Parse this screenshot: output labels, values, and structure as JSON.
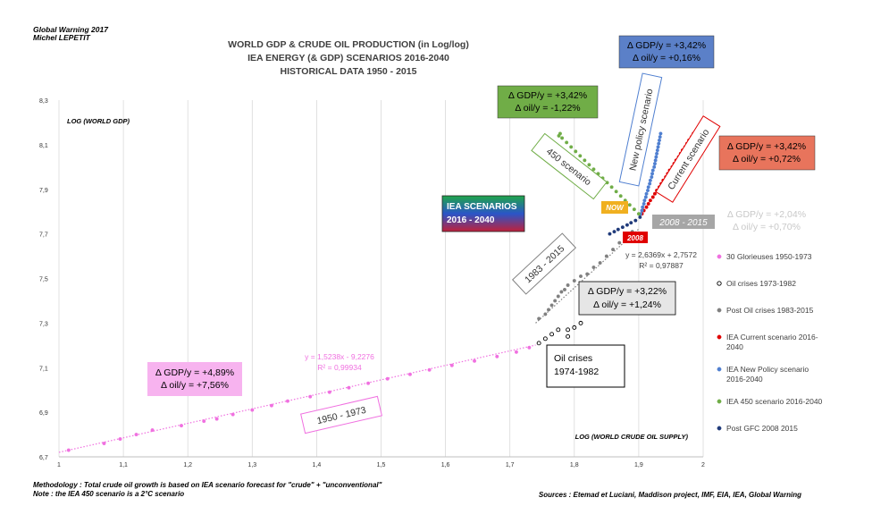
{
  "author": {
    "line1": "Global Warning 2017",
    "line2": "Michel LEPETIT"
  },
  "chart_data": {
    "type": "scatter",
    "title": [
      "WORLD GDP & CRUDE OIL PRODUCTION (in Log/log)",
      "IEA ENERGY (& GDP) SCENARIOS 2016-2040",
      "HISTORICAL DATA  1950 - 2015"
    ],
    "xlabel": "LOG (WORLD CRUDE OIL SUPPLY)",
    "ylabel": "LOG (WORLD GDP)",
    "xlim": [
      1,
      2
    ],
    "ylim": [
      6.7,
      8.3
    ],
    "x_ticks": [
      1,
      1.1,
      1.2,
      1.3,
      1.4,
      1.5,
      1.6,
      1.7,
      1.8,
      1.9,
      2
    ],
    "x_tick_labels": [
      "1",
      "1,1",
      "1,2",
      "1,3",
      "1,4",
      "1,5",
      "1,6",
      "1,7",
      "1,8",
      "1,9",
      "2"
    ],
    "y_ticks": [
      6.7,
      6.9,
      7.1,
      7.3,
      7.5,
      7.7,
      7.9,
      8.1,
      8.3
    ],
    "y_tick_labels": [
      "6,7",
      "6,9",
      "7,1",
      "7,3",
      "7,5",
      "7,7",
      "7,9",
      "8,1",
      "8,3"
    ],
    "grid": "vertical",
    "legend_position": "right",
    "series": [
      {
        "name": "30 Glorieuses 1950-1973",
        "color": "#f070e0",
        "marker": "filled",
        "x": [
          1.015,
          1.07,
          1.095,
          1.12,
          1.145,
          1.19,
          1.225,
          1.245,
          1.27,
          1.3,
          1.33,
          1.355,
          1.39,
          1.42,
          1.45,
          1.48,
          1.51,
          1.545,
          1.575,
          1.61,
          1.645,
          1.68,
          1.71,
          1.73
        ],
        "y": [
          6.73,
          6.76,
          6.78,
          6.8,
          6.82,
          6.84,
          6.86,
          6.87,
          6.89,
          6.91,
          6.93,
          6.95,
          6.97,
          6.99,
          7.01,
          7.03,
          7.05,
          7.07,
          7.09,
          7.11,
          7.13,
          7.15,
          7.17,
          7.19
        ]
      },
      {
        "name": "Oil crises 1973-1982",
        "color": "#000000",
        "marker": "hollow",
        "x": [
          1.745,
          1.755,
          1.765,
          1.775,
          1.79,
          1.8,
          1.81,
          1.79
        ],
        "y": [
          7.21,
          7.23,
          7.25,
          7.27,
          7.27,
          7.28,
          7.3,
          7.24
        ]
      },
      {
        "name": "Post Oil crises 1983-2015",
        "color": "#808080",
        "marker": "filled",
        "x": [
          1.745,
          1.755,
          1.76,
          1.765,
          1.77,
          1.775,
          1.78,
          1.785,
          1.79,
          1.8,
          1.81,
          1.82,
          1.83,
          1.84,
          1.85,
          1.86,
          1.87,
          1.88,
          1.89
        ],
        "y": [
          7.32,
          7.34,
          7.36,
          7.38,
          7.4,
          7.42,
          7.44,
          7.45,
          7.47,
          7.49,
          7.51,
          7.52,
          7.55,
          7.57,
          7.6,
          7.63,
          7.66,
          7.68,
          7.71
        ]
      },
      {
        "name": "IEA Current scenario 2016-2040",
        "color": "#e00000",
        "marker": "filled",
        "x": [
          1.905,
          1.908,
          1.912,
          1.915,
          1.918,
          1.922,
          1.925,
          1.928,
          1.932,
          1.935,
          1.938,
          1.942,
          1.945,
          1.948,
          1.952,
          1.955,
          1.958,
          1.962,
          1.965,
          1.968,
          1.972,
          1.975,
          1.978,
          1.982,
          1.985
        ],
        "y": [
          7.79,
          7.805,
          7.82,
          7.835,
          7.85,
          7.865,
          7.88,
          7.895,
          7.91,
          7.925,
          7.94,
          7.955,
          7.97,
          7.985,
          8,
          8.015,
          8.03,
          8.045,
          8.06,
          8.075,
          8.09,
          8.105,
          8.12,
          8.135,
          8.15
        ]
      },
      {
        "name": "IEA New Policy scenario 2016-2040",
        "color": "#4f7fd0",
        "marker": "filled",
        "x": [
          1.903,
          1.905,
          1.906,
          1.908,
          1.909,
          1.911,
          1.912,
          1.914,
          1.915,
          1.917,
          1.918,
          1.92,
          1.921,
          1.922,
          1.924,
          1.925,
          1.926,
          1.927,
          1.928,
          1.929,
          1.93,
          1.931,
          1.932,
          1.933,
          1.934
        ],
        "y": [
          7.79,
          7.805,
          7.82,
          7.835,
          7.85,
          7.865,
          7.88,
          7.895,
          7.91,
          7.925,
          7.94,
          7.955,
          7.97,
          7.985,
          8,
          8.015,
          8.03,
          8.045,
          8.06,
          8.075,
          8.09,
          8.105,
          8.12,
          8.135,
          8.15
        ]
      },
      {
        "name": "IEA 450 scenario 2016-2040",
        "color": "#70ad47",
        "marker": "filled",
        "x": [
          1.9,
          1.893,
          1.886,
          1.879,
          1.872,
          1.865,
          1.858,
          1.851,
          1.844,
          1.837,
          1.83,
          1.823,
          1.816,
          1.809,
          1.802,
          1.795,
          1.788,
          1.781,
          1.776,
          1.778
        ],
        "y": [
          7.79,
          7.81,
          7.83,
          7.85,
          7.87,
          7.89,
          7.91,
          7.93,
          7.95,
          7.97,
          7.99,
          8.01,
          8.03,
          8.05,
          8.07,
          8.09,
          8.11,
          8.13,
          8.14,
          8.15
        ]
      },
      {
        "name": "Post GFC 2008 2015",
        "color": "#1f3a7a",
        "marker": "filled",
        "x": [
          1.855,
          1.862,
          1.868,
          1.875,
          1.882,
          1.888,
          1.895,
          1.902
        ],
        "y": [
          7.7,
          7.71,
          7.72,
          7.73,
          7.74,
          7.75,
          7.76,
          7.775
        ]
      }
    ],
    "trendlines": [
      {
        "color": "#f070e0",
        "x": [
          1,
          1.74
        ],
        "label": "y = 1,5238x - 9,2276",
        "r2": "R² = 0,99934"
      },
      {
        "color": "#808080",
        "x": [
          1.74,
          1.9
        ],
        "label": "y = 2,6369x + 2,7572",
        "r2": "R² = 0,97887"
      }
    ],
    "annotations": {
      "box_450": [
        "Δ GDP/y = +3,42%",
        "Δ oil/y = -1,22%"
      ],
      "box_new_policy": [
        "Δ GDP/y = +3,42%",
        "Δ oil/y = +0,16%"
      ],
      "box_current": [
        "Δ GDP/y = +3,42%",
        "Δ oil/y = +0,72%"
      ],
      "box_2008": [
        "Δ GDP/y = +2,04%",
        "Δ oil/y = +0,70%"
      ],
      "box_1983": [
        "Δ GDP/y = +3,22%",
        "Δ oil/y = +1,24%"
      ],
      "box_1950": [
        "Δ GDP/y = +4,89%",
        "Δ oil/y = +7,56%"
      ],
      "iea_scenarios": [
        "IEA SCENARIOS",
        "2016 - 2040"
      ],
      "oil_crises": [
        "Oil crises",
        "1974-1982"
      ],
      "label_450": "450 scenario",
      "label_new_policy": "New policy scenario",
      "label_current": "Current scenario",
      "label_1983": "1983 - 2015",
      "label_1950": "1950 - 1973",
      "label_2008_2015": "2008 - 2015",
      "label_now": "NOW",
      "label_2008": "2008"
    }
  },
  "legend": [
    {
      "label": [
        "30 Glorieuses 1950-1973"
      ],
      "color": "#f070e0",
      "marker": "filled"
    },
    {
      "label": [
        "Oil crises 1973-1982"
      ],
      "color": "#000000",
      "marker": "hollow"
    },
    {
      "label": [
        "Post Oil crises 1983-2015"
      ],
      "color": "#808080",
      "marker": "filled"
    },
    {
      "label": [
        "IEA Current scenario 2016-",
        "2040"
      ],
      "color": "#e00000",
      "marker": "filled"
    },
    {
      "label": [
        "IEA New Policy scenario",
        "2016-2040"
      ],
      "color": "#4f7fd0",
      "marker": "filled"
    },
    {
      "label": [
        "IEA 450 scenario 2016-2040"
      ],
      "color": "#70ad47",
      "marker": "filled"
    },
    {
      "label": [
        "Post GFC 2008 2015"
      ],
      "color": "#1f3a7a",
      "marker": "filled"
    }
  ],
  "footer": {
    "methodology": "Methodology : Total crude oil growth is based on IEA scenario forecast for \"crude\" + \"unconventional\"",
    "note": "Note : the IEA 450 scenario is a 2°C scenario",
    "sources": "Sources : Etemad et Luciani, Maddison project, IMF, EIA,  IEA, Global Warning"
  }
}
